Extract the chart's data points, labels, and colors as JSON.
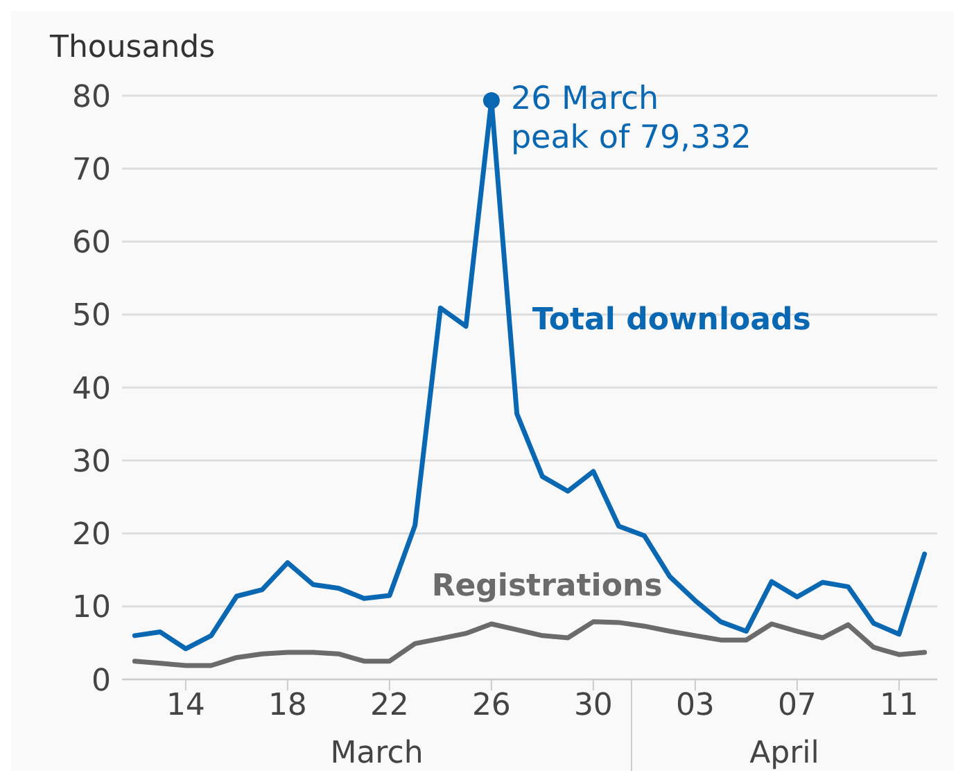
{
  "chart_data": {
    "type": "line",
    "ylabel": "Thousands",
    "x": [
      "--03-12",
      "--03-13",
      "--03-14",
      "--03-15",
      "--03-16",
      "--03-17",
      "--03-18",
      "--03-19",
      "--03-20",
      "--03-21",
      "--03-22",
      "--03-23",
      "--03-24",
      "--03-25",
      "--03-26",
      "--03-27",
      "--03-28",
      "--03-29",
      "--03-30",
      "--03-31",
      "--04-01",
      "--04-02",
      "--04-03",
      "--04-04",
      "--04-05",
      "--04-06",
      "--04-07",
      "--04-08",
      "--04-09",
      "--04-10",
      "--04-11",
      "--04-12"
    ],
    "series": [
      {
        "name": "Total downloads",
        "color": "#0a67b1",
        "values": [
          6.0,
          6.5,
          4.2,
          6.0,
          11.4,
          12.3,
          16.0,
          13.0,
          12.5,
          11.1,
          11.5,
          21.1,
          50.9,
          48.4,
          79.332,
          36.4,
          27.8,
          25.8,
          28.5,
          21.0,
          19.7,
          14.1,
          10.8,
          7.9,
          6.6,
          13.4,
          11.3,
          13.3,
          12.7,
          7.7,
          6.2,
          17.2
        ]
      },
      {
        "name": "Registrations",
        "color": "#6b6b6b",
        "values": [
          2.5,
          2.2,
          1.9,
          1.9,
          3.0,
          3.5,
          3.7,
          3.7,
          3.5,
          2.5,
          2.5,
          4.9,
          5.6,
          6.3,
          7.6,
          6.8,
          6.0,
          5.7,
          7.9,
          7.8,
          7.3,
          6.6,
          6.0,
          5.4,
          5.4,
          7.6,
          6.6,
          5.7,
          7.5,
          4.4,
          3.4,
          3.7
        ]
      }
    ],
    "xlim": [
      "--03-11T12:00",
      "--04-12T12:00"
    ],
    "xticks": [
      {
        "value": "--03-14",
        "label": "14"
      },
      {
        "value": "--03-18",
        "label": "18"
      },
      {
        "value": "--03-22",
        "label": "22"
      },
      {
        "value": "--03-26",
        "label": "26"
      },
      {
        "value": "--03-30",
        "label": "30"
      },
      {
        "value": "--04-03",
        "label": "03"
      },
      {
        "value": "--04-07",
        "label": "07"
      },
      {
        "value": "--04-11",
        "label": "11"
      }
    ],
    "ylim": [
      0,
      80
    ],
    "yticks": [
      0,
      10,
      20,
      30,
      40,
      50,
      60,
      70,
      80
    ],
    "grid": "y",
    "marker": "none",
    "line_style": "solid",
    "annotations": [
      {
        "text": "26 March\npeak of 79,332",
        "x": "--03-26",
        "y": 79.332
      },
      "March",
      "April"
    ]
  }
}
